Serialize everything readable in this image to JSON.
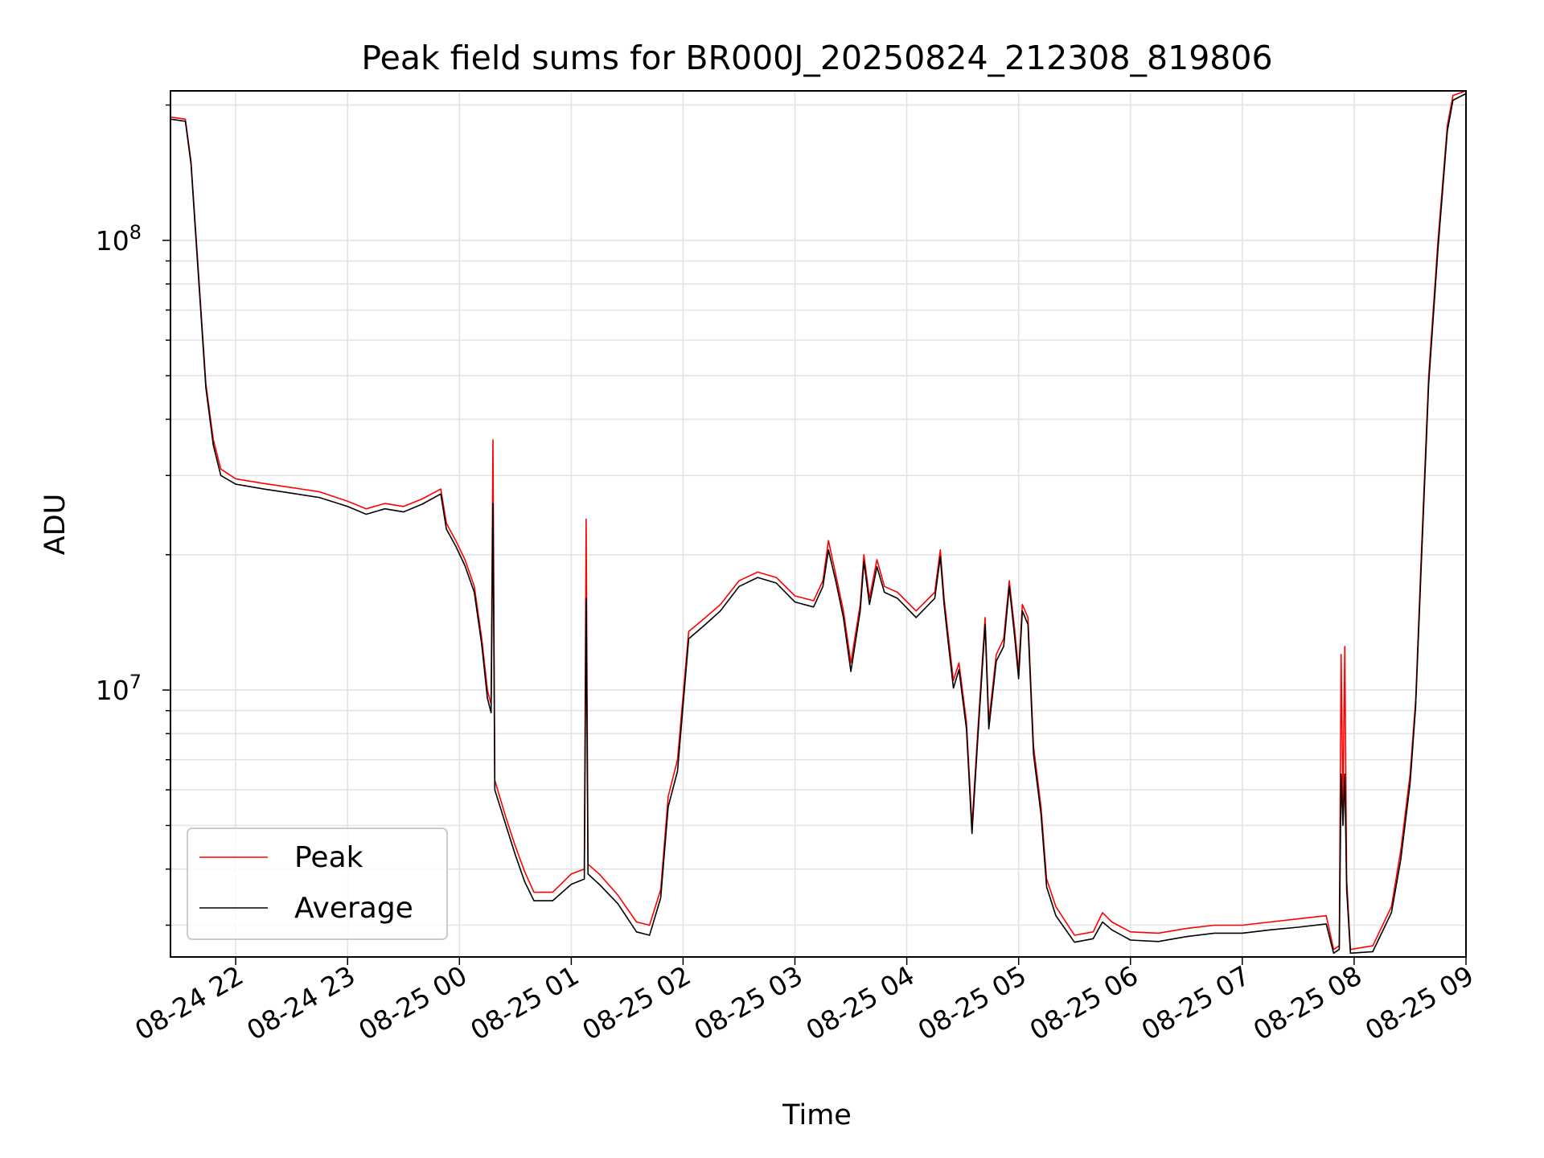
{
  "chart_data": {
    "type": "line",
    "title": "Peak field sums for BR000J_20250824_212308_819806",
    "xlabel": "Time",
    "ylabel": "ADU",
    "yscale": "log",
    "grid": true,
    "legend_position": "lower-left",
    "xlim": [
      "2025-08-24 21:25",
      "2025-08-25 09:00"
    ],
    "ylim": [
      2550000,
      215000000
    ],
    "x_ticks": [
      {
        "value": "2025-08-24 22:00",
        "label": "08-24 22"
      },
      {
        "value": "2025-08-24 23:00",
        "label": "08-24 23"
      },
      {
        "value": "2025-08-25 00:00",
        "label": "08-25 00"
      },
      {
        "value": "2025-08-25 01:00",
        "label": "08-25 01"
      },
      {
        "value": "2025-08-25 02:00",
        "label": "08-25 02"
      },
      {
        "value": "2025-08-25 03:00",
        "label": "08-25 03"
      },
      {
        "value": "2025-08-25 04:00",
        "label": "08-25 04"
      },
      {
        "value": "2025-08-25 05:00",
        "label": "08-25 05"
      },
      {
        "value": "2025-08-25 06:00",
        "label": "08-25 06"
      },
      {
        "value": "2025-08-25 07:00",
        "label": "08-25 07"
      },
      {
        "value": "2025-08-25 08:00",
        "label": "08-25 08"
      },
      {
        "value": "2025-08-25 09:00",
        "label": "08-25 09"
      }
    ],
    "y_ticks": [
      {
        "value": 10000000,
        "label": "10",
        "exponent": "7"
      },
      {
        "value": 100000000,
        "label": "10",
        "exponent": "8"
      }
    ],
    "colors": {
      "peak": "#ff0000",
      "average": "#000000",
      "grid": "#e3e3e3"
    },
    "series": [
      {
        "name": "Peak",
        "color": "#ff0000",
        "points": [
          [
            "2025-08-24 21:25",
            188000000
          ],
          [
            "2025-08-24 21:33",
            186000000
          ],
          [
            "2025-08-24 21:36",
            150000000
          ],
          [
            "2025-08-24 21:40",
            85000000
          ],
          [
            "2025-08-24 21:44",
            48000000
          ],
          [
            "2025-08-24 21:48",
            36000000
          ],
          [
            "2025-08-24 21:52",
            31000000
          ],
          [
            "2025-08-24 22:00",
            29500000
          ],
          [
            "2025-08-24 22:15",
            28800000
          ],
          [
            "2025-08-24 22:30",
            28200000
          ],
          [
            "2025-08-24 22:45",
            27600000
          ],
          [
            "2025-08-24 23:00",
            26300000
          ],
          [
            "2025-08-24 23:10",
            25300000
          ],
          [
            "2025-08-24 23:20",
            26000000
          ],
          [
            "2025-08-24 23:30",
            25600000
          ],
          [
            "2025-08-24 23:40",
            26600000
          ],
          [
            "2025-08-24 23:50",
            28000000
          ],
          [
            "2025-08-24 23:53",
            23500000
          ],
          [
            "2025-08-24 23:58",
            21500000
          ],
          [
            "2025-08-25 00:03",
            19500000
          ],
          [
            "2025-08-25 00:08",
            17000000
          ],
          [
            "2025-08-25 00:12",
            13000000
          ],
          [
            "2025-08-25 00:15",
            10000000
          ],
          [
            "2025-08-25 00:17",
            9300000
          ],
          [
            "2025-08-25 00:18",
            36000000
          ],
          [
            "2025-08-25 00:19",
            6300000
          ],
          [
            "2025-08-25 00:25",
            5200000
          ],
          [
            "2025-08-25 00:30",
            4500000
          ],
          [
            "2025-08-25 00:35",
            3950000
          ],
          [
            "2025-08-25 00:40",
            3550000
          ],
          [
            "2025-08-25 00:50",
            3550000
          ],
          [
            "2025-08-25 01:00",
            3900000
          ],
          [
            "2025-08-25 01:07",
            4000000
          ],
          [
            "2025-08-25 01:08",
            24000000
          ],
          [
            "2025-08-25 01:09",
            4100000
          ],
          [
            "2025-08-25 01:15",
            3900000
          ],
          [
            "2025-08-25 01:25",
            3500000
          ],
          [
            "2025-08-25 01:35",
            3050000
          ],
          [
            "2025-08-25 01:42",
            3000000
          ],
          [
            "2025-08-25 01:48",
            3600000
          ],
          [
            "2025-08-25 01:52",
            5800000
          ],
          [
            "2025-08-25 01:57",
            7000000
          ],
          [
            "2025-08-25 02:03",
            13500000
          ],
          [
            "2025-08-25 02:12",
            14500000
          ],
          [
            "2025-08-25 02:20",
            15500000
          ],
          [
            "2025-08-25 02:30",
            17500000
          ],
          [
            "2025-08-25 02:40",
            18300000
          ],
          [
            "2025-08-25 02:50",
            17800000
          ],
          [
            "2025-08-25 03:00",
            16200000
          ],
          [
            "2025-08-25 03:10",
            15800000
          ],
          [
            "2025-08-25 03:15",
            17500000
          ],
          [
            "2025-08-25 03:18",
            21500000
          ],
          [
            "2025-08-25 03:22",
            18000000
          ],
          [
            "2025-08-25 03:26",
            15000000
          ],
          [
            "2025-08-25 03:30",
            11500000
          ],
          [
            "2025-08-25 03:35",
            15500000
          ],
          [
            "2025-08-25 03:37",
            20000000
          ],
          [
            "2025-08-25 03:40",
            16000000
          ],
          [
            "2025-08-25 03:44",
            19500000
          ],
          [
            "2025-08-25 03:48",
            17000000
          ],
          [
            "2025-08-25 03:55",
            16500000
          ],
          [
            "2025-08-25 04:05",
            15000000
          ],
          [
            "2025-08-25 04:15",
            16500000
          ],
          [
            "2025-08-25 04:18",
            20500000
          ],
          [
            "2025-08-25 04:20",
            16000000
          ],
          [
            "2025-08-25 04:22",
            13500000
          ],
          [
            "2025-08-25 04:25",
            10500000
          ],
          [
            "2025-08-25 04:28",
            11500000
          ],
          [
            "2025-08-25 04:32",
            8500000
          ],
          [
            "2025-08-25 04:35",
            5000000
          ],
          [
            "2025-08-25 04:38",
            8000000
          ],
          [
            "2025-08-25 04:42",
            14500000
          ],
          [
            "2025-08-25 04:44",
            8500000
          ],
          [
            "2025-08-25 04:48",
            12000000
          ],
          [
            "2025-08-25 04:52",
            13000000
          ],
          [
            "2025-08-25 04:55",
            17500000
          ],
          [
            "2025-08-25 04:58",
            13500000
          ],
          [
            "2025-08-25 05:00",
            11000000
          ],
          [
            "2025-08-25 05:02",
            15500000
          ],
          [
            "2025-08-25 05:05",
            14500000
          ],
          [
            "2025-08-25 05:08",
            7500000
          ],
          [
            "2025-08-25 05:12",
            5500000
          ],
          [
            "2025-08-25 05:15",
            3800000
          ],
          [
            "2025-08-25 05:20",
            3300000
          ],
          [
            "2025-08-25 05:30",
            2850000
          ],
          [
            "2025-08-25 05:40",
            2900000
          ],
          [
            "2025-08-25 05:45",
            3200000
          ],
          [
            "2025-08-25 05:50",
            3050000
          ],
          [
            "2025-08-25 06:00",
            2900000
          ],
          [
            "2025-08-25 06:15",
            2880000
          ],
          [
            "2025-08-25 06:30",
            2950000
          ],
          [
            "2025-08-25 06:45",
            3000000
          ],
          [
            "2025-08-25 07:00",
            3000000
          ],
          [
            "2025-08-25 07:15",
            3050000
          ],
          [
            "2025-08-25 07:30",
            3100000
          ],
          [
            "2025-08-25 07:45",
            3150000
          ],
          [
            "2025-08-25 07:49",
            2650000
          ],
          [
            "2025-08-25 07:52",
            2700000
          ],
          [
            "2025-08-25 07:53",
            12000000
          ],
          [
            "2025-08-25 07:54",
            5500000
          ],
          [
            "2025-08-25 07:55",
            12500000
          ],
          [
            "2025-08-25 07:56",
            3800000
          ],
          [
            "2025-08-25 07:58",
            2650000
          ],
          [
            "2025-08-25 08:10",
            2700000
          ],
          [
            "2025-08-25 08:20",
            3300000
          ],
          [
            "2025-08-25 08:25",
            4400000
          ],
          [
            "2025-08-25 08:30",
            6500000
          ],
          [
            "2025-08-25 08:33",
            9500000
          ],
          [
            "2025-08-25 08:36",
            20000000
          ],
          [
            "2025-08-25 08:40",
            50000000
          ],
          [
            "2025-08-25 08:45",
            100000000
          ],
          [
            "2025-08-25 08:50",
            180000000
          ],
          [
            "2025-08-25 08:53",
            210000000
          ],
          [
            "2025-08-25 09:00",
            215000000
          ]
        ]
      },
      {
        "name": "Average",
        "color": "#000000",
        "points": [
          [
            "2025-08-24 21:25",
            186000000
          ],
          [
            "2025-08-24 21:33",
            184000000
          ],
          [
            "2025-08-24 21:36",
            148000000
          ],
          [
            "2025-08-24 21:40",
            83000000
          ],
          [
            "2025-08-24 21:44",
            47000000
          ],
          [
            "2025-08-24 21:48",
            35000000
          ],
          [
            "2025-08-24 21:52",
            30000000
          ],
          [
            "2025-08-24 22:00",
            28700000
          ],
          [
            "2025-08-24 22:15",
            28000000
          ],
          [
            "2025-08-24 22:30",
            27400000
          ],
          [
            "2025-08-24 22:45",
            26800000
          ],
          [
            "2025-08-24 23:00",
            25600000
          ],
          [
            "2025-08-24 23:10",
            24600000
          ],
          [
            "2025-08-24 23:20",
            25300000
          ],
          [
            "2025-08-24 23:30",
            24900000
          ],
          [
            "2025-08-24 23:40",
            25900000
          ],
          [
            "2025-08-24 23:50",
            27300000
          ],
          [
            "2025-08-24 23:53",
            22800000
          ],
          [
            "2025-08-24 23:58",
            20900000
          ],
          [
            "2025-08-25 00:03",
            18900000
          ],
          [
            "2025-08-25 00:08",
            16500000
          ],
          [
            "2025-08-25 00:12",
            12600000
          ],
          [
            "2025-08-25 00:15",
            9600000
          ],
          [
            "2025-08-25 00:17",
            8900000
          ],
          [
            "2025-08-25 00:18",
            26000000
          ],
          [
            "2025-08-25 00:19",
            6000000
          ],
          [
            "2025-08-25 00:25",
            5000000
          ],
          [
            "2025-08-25 00:30",
            4300000
          ],
          [
            "2025-08-25 00:35",
            3750000
          ],
          [
            "2025-08-25 00:40",
            3400000
          ],
          [
            "2025-08-25 00:50",
            3400000
          ],
          [
            "2025-08-25 01:00",
            3700000
          ],
          [
            "2025-08-25 01:07",
            3800000
          ],
          [
            "2025-08-25 01:08",
            16000000
          ],
          [
            "2025-08-25 01:09",
            3900000
          ],
          [
            "2025-08-25 01:15",
            3700000
          ],
          [
            "2025-08-25 01:25",
            3350000
          ],
          [
            "2025-08-25 01:35",
            2900000
          ],
          [
            "2025-08-25 01:42",
            2850000
          ],
          [
            "2025-08-25 01:48",
            3450000
          ],
          [
            "2025-08-25 01:52",
            5500000
          ],
          [
            "2025-08-25 01:57",
            6600000
          ],
          [
            "2025-08-25 02:03",
            13000000
          ],
          [
            "2025-08-25 02:12",
            14000000
          ],
          [
            "2025-08-25 02:20",
            15000000
          ],
          [
            "2025-08-25 02:30",
            17000000
          ],
          [
            "2025-08-25 02:40",
            17800000
          ],
          [
            "2025-08-25 02:50",
            17300000
          ],
          [
            "2025-08-25 03:00",
            15700000
          ],
          [
            "2025-08-25 03:10",
            15300000
          ],
          [
            "2025-08-25 03:15",
            17000000
          ],
          [
            "2025-08-25 03:18",
            20500000
          ],
          [
            "2025-08-25 03:22",
            17400000
          ],
          [
            "2025-08-25 03:26",
            14500000
          ],
          [
            "2025-08-25 03:30",
            11000000
          ],
          [
            "2025-08-25 03:35",
            15000000
          ],
          [
            "2025-08-25 03:37",
            19300000
          ],
          [
            "2025-08-25 03:40",
            15500000
          ],
          [
            "2025-08-25 03:44",
            18800000
          ],
          [
            "2025-08-25 03:48",
            16500000
          ],
          [
            "2025-08-25 03:55",
            16000000
          ],
          [
            "2025-08-25 04:05",
            14500000
          ],
          [
            "2025-08-25 04:15",
            16000000
          ],
          [
            "2025-08-25 04:18",
            19800000
          ],
          [
            "2025-08-25 04:20",
            15500000
          ],
          [
            "2025-08-25 04:22",
            13000000
          ],
          [
            "2025-08-25 04:25",
            10100000
          ],
          [
            "2025-08-25 04:28",
            11100000
          ],
          [
            "2025-08-25 04:32",
            8200000
          ],
          [
            "2025-08-25 04:35",
            4800000
          ],
          [
            "2025-08-25 04:38",
            7700000
          ],
          [
            "2025-08-25 04:42",
            14000000
          ],
          [
            "2025-08-25 04:44",
            8200000
          ],
          [
            "2025-08-25 04:48",
            11600000
          ],
          [
            "2025-08-25 04:52",
            12500000
          ],
          [
            "2025-08-25 04:55",
            17000000
          ],
          [
            "2025-08-25 04:58",
            13000000
          ],
          [
            "2025-08-25 05:00",
            10600000
          ],
          [
            "2025-08-25 05:02",
            15000000
          ],
          [
            "2025-08-25 05:05",
            14000000
          ],
          [
            "2025-08-25 05:08",
            7200000
          ],
          [
            "2025-08-25 05:12",
            5300000
          ],
          [
            "2025-08-25 05:15",
            3650000
          ],
          [
            "2025-08-25 05:20",
            3150000
          ],
          [
            "2025-08-25 05:30",
            2750000
          ],
          [
            "2025-08-25 05:40",
            2800000
          ],
          [
            "2025-08-25 05:45",
            3050000
          ],
          [
            "2025-08-25 05:50",
            2930000
          ],
          [
            "2025-08-25 06:00",
            2780000
          ],
          [
            "2025-08-25 06:15",
            2760000
          ],
          [
            "2025-08-25 06:30",
            2830000
          ],
          [
            "2025-08-25 06:45",
            2880000
          ],
          [
            "2025-08-25 07:00",
            2880000
          ],
          [
            "2025-08-25 07:15",
            2930000
          ],
          [
            "2025-08-25 07:30",
            2970000
          ],
          [
            "2025-08-25 07:45",
            3020000
          ],
          [
            "2025-08-25 07:49",
            2600000
          ],
          [
            "2025-08-25 07:52",
            2650000
          ],
          [
            "2025-08-25 07:53",
            6500000
          ],
          [
            "2025-08-25 07:54",
            5000000
          ],
          [
            "2025-08-25 07:55",
            6500000
          ],
          [
            "2025-08-25 07:56",
            3600000
          ],
          [
            "2025-08-25 07:58",
            2600000
          ],
          [
            "2025-08-25 08:10",
            2620000
          ],
          [
            "2025-08-25 08:20",
            3200000
          ],
          [
            "2025-08-25 08:25",
            4200000
          ],
          [
            "2025-08-25 08:30",
            6200000
          ],
          [
            "2025-08-25 08:33",
            9200000
          ],
          [
            "2025-08-25 08:36",
            19000000
          ],
          [
            "2025-08-25 08:40",
            48000000
          ],
          [
            "2025-08-25 08:45",
            96000000
          ],
          [
            "2025-08-25 08:50",
            175000000
          ],
          [
            "2025-08-25 08:53",
            205000000
          ],
          [
            "2025-08-25 09:00",
            212000000
          ]
        ]
      }
    ]
  }
}
